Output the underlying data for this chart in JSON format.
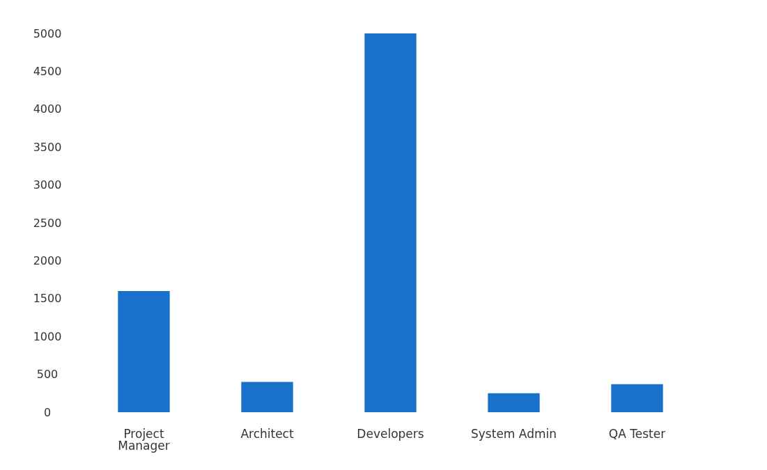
{
  "chart_data": {
    "type": "bar",
    "categories": [
      "Project\nManager",
      "Architect",
      "Developers",
      "System Admin",
      "QA Tester"
    ],
    "values": [
      1600,
      400,
      5000,
      250,
      370
    ],
    "color": "#1872cc",
    "ylim": [
      0,
      5000
    ],
    "yticks": [
      0,
      500,
      1000,
      1500,
      2000,
      2500,
      3000,
      3500,
      4000,
      4500,
      5000
    ],
    "grid": false
  }
}
